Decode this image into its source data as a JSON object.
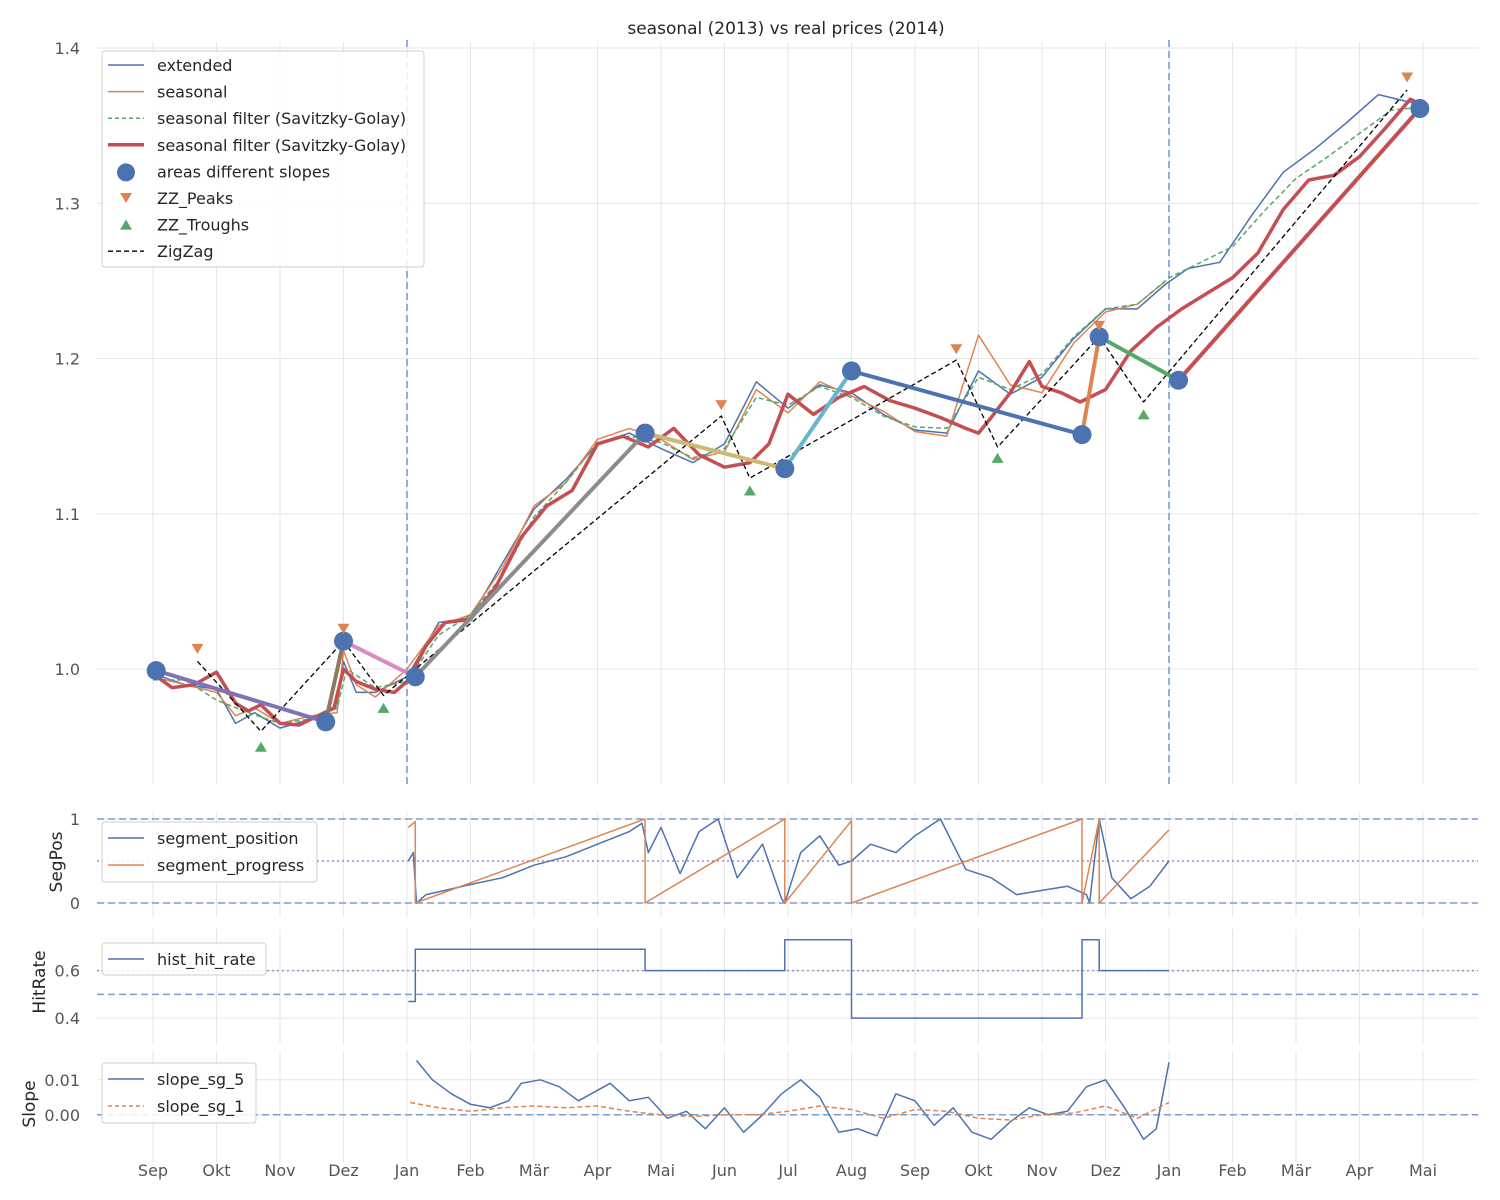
{
  "chart_data": [
    {
      "type": "line",
      "title": "seasonal (2013) vs real prices (2014)",
      "ylim": [
        0.935,
        1.4
      ],
      "yticks": [
        1.0,
        1.1,
        1.2,
        1.3,
        1.4
      ],
      "month_labels": [
        "Sep",
        "Okt",
        "Nov",
        "Dez",
        "Jan",
        "Feb",
        "Mär",
        "Apr",
        "Mai",
        "Jun",
        "Jul",
        "Aug",
        "Sep",
        "Okt",
        "Nov",
        "Dez",
        "Jan",
        "Feb",
        "Mär",
        "Apr",
        "Mai"
      ],
      "grid": true,
      "legend": "upper left",
      "vlines_month": [
        4,
        16
      ],
      "series": [
        {
          "name": "extended",
          "color": "#4c72b0",
          "x": [
            0,
            0.5,
            1,
            1.3,
            1.6,
            2,
            2.5,
            2.9,
            3,
            3.2,
            3.5,
            4,
            4.5,
            5,
            5.5,
            6,
            6.5,
            7,
            7.5,
            8,
            8.5,
            9,
            9.5,
            10,
            10.5,
            11,
            11.5,
            12,
            12.5,
            13,
            13.5,
            14,
            14.5,
            15,
            15.5,
            15.95,
            16.3,
            16.8,
            17.3,
            17.8,
            18.3,
            18.8,
            19.3,
            19.8,
            20.05
          ],
          "y": [
            0.997,
            0.99,
            0.987,
            0.965,
            0.972,
            0.962,
            0.968,
            0.975,
            1.005,
            0.985,
            0.985,
            0.995,
            1.03,
            1.033,
            1.068,
            1.103,
            1.122,
            1.145,
            1.152,
            1.142,
            1.133,
            1.145,
            1.185,
            1.168,
            1.183,
            1.178,
            1.164,
            1.154,
            1.152,
            1.192,
            1.177,
            1.188,
            1.213,
            1.232,
            1.232,
            1.248,
            1.258,
            1.262,
            1.292,
            1.32,
            1.335,
            1.352,
            1.37,
            1.365,
            1.362
          ]
        },
        {
          "name": "seasonal",
          "color": "#dd8452",
          "x": [
            0,
            0.5,
            1,
            1.3,
            1.6,
            2,
            2.5,
            2.9,
            3,
            3.2,
            3.5,
            4,
            4.5,
            5,
            5.5,
            6,
            6.5,
            7,
            7.5,
            8,
            8.5,
            9,
            9.5,
            10,
            10.5,
            11,
            11.5,
            12,
            12.5,
            13,
            13.5,
            14,
            14.5,
            15,
            15.5,
            15.95
          ],
          "y": [
            0.995,
            0.99,
            0.985,
            0.97,
            0.975,
            0.965,
            0.97,
            0.972,
            1.012,
            0.99,
            0.982,
            1.0,
            1.028,
            1.035,
            1.065,
            1.105,
            1.12,
            1.148,
            1.155,
            1.148,
            1.135,
            1.14,
            1.18,
            1.165,
            1.185,
            1.176,
            1.166,
            1.153,
            1.15,
            1.215,
            1.183,
            1.178,
            1.21,
            1.23,
            1.235,
            1.25
          ]
        },
        {
          "name": "seasonal filter (Savitzky-Golay)",
          "color": "#55a868",
          "dash": "5,3",
          "x": [
            0,
            0.5,
            1,
            1.5,
            2,
            2.5,
            2.9,
            3.05,
            3.5,
            4,
            4.5,
            5,
            5.5,
            6,
            6.5,
            7,
            7.5,
            8,
            8.5,
            9,
            9.5,
            10,
            10.5,
            11,
            11.5,
            12,
            12.5,
            13,
            13.5,
            14,
            14.5,
            15,
            15.5,
            16,
            16.5,
            17,
            17.5,
            18,
            18.5,
            19,
            19.5,
            20
          ],
          "y": [
            0.993,
            0.993,
            0.98,
            0.972,
            0.965,
            0.968,
            0.975,
            1.0,
            0.988,
            0.992,
            1.022,
            1.035,
            1.06,
            1.098,
            1.12,
            1.146,
            1.15,
            1.146,
            1.136,
            1.142,
            1.175,
            1.17,
            1.182,
            1.175,
            1.163,
            1.156,
            1.155,
            1.188,
            1.18,
            1.19,
            1.214,
            1.232,
            1.235,
            1.252,
            1.262,
            1.272,
            1.295,
            1.316,
            1.33,
            1.345,
            1.36,
            1.362
          ]
        },
        {
          "name": "seasonal filter (Savitzky-Golay)",
          "color": "#c44e52",
          "width": 3.5,
          "x": [
            0,
            0.3,
            0.65,
            1,
            1.3,
            1.5,
            1.7,
            2,
            2.3,
            2.6,
            2.85,
            3,
            3.2,
            3.5,
            3.8,
            4,
            4.3,
            4.6,
            5,
            5.4,
            5.8,
            6.2,
            6.6,
            7,
            7.4,
            7.8,
            8.2,
            8.6,
            9,
            9.4,
            9.7,
            10,
            10.4,
            10.8,
            11.2,
            11.6,
            12,
            12.4,
            12.8,
            13,
            13.2,
            13.5,
            13.8,
            14,
            14.3,
            14.6,
            15,
            15.4,
            15.8,
            16.2,
            16.6,
            17,
            17.4,
            17.8,
            18.2,
            18.6,
            19,
            19.4,
            19.8,
            20
          ],
          "y": [
            0.997,
            0.988,
            0.99,
            0.998,
            0.978,
            0.973,
            0.977,
            0.965,
            0.964,
            0.97,
            0.975,
            1.0,
            0.992,
            0.987,
            0.985,
            0.992,
            1.015,
            1.03,
            1.032,
            1.053,
            1.085,
            1.105,
            1.115,
            1.145,
            1.15,
            1.143,
            1.155,
            1.138,
            1.13,
            1.133,
            1.145,
            1.177,
            1.164,
            1.175,
            1.182,
            1.173,
            1.168,
            1.162,
            1.155,
            1.152,
            1.162,
            1.178,
            1.198,
            1.182,
            1.178,
            1.172,
            1.18,
            1.205,
            1.22,
            1.232,
            1.242,
            1.252,
            1.268,
            1.296,
            1.315,
            1.318,
            1.33,
            1.348,
            1.367,
            1.363
          ]
        }
      ],
      "area_points": {
        "name": "areas different slopes",
        "color": "#4c72b0",
        "x": [
          0.05,
          2.72,
          3.0,
          4.13,
          7.75,
          9.95,
          11.0,
          14.63,
          14.9,
          16.15,
          19.95
        ],
        "y": [
          0.999,
          0.966,
          1.018,
          0.995,
          1.152,
          1.129,
          1.192,
          1.151,
          1.214,
          1.186,
          1.361
        ]
      },
      "area_lines": [
        {
          "color": "#8172b3",
          "x": [
            0.05,
            2.72
          ],
          "y": [
            0.999,
            0.966
          ]
        },
        {
          "color": "#937860",
          "x": [
            2.72,
            3.0
          ],
          "y": [
            0.966,
            1.018
          ]
        },
        {
          "color": "#da8bc3",
          "x": [
            3.0,
            4.13
          ],
          "y": [
            1.018,
            0.995
          ]
        },
        {
          "color": "#8c8c8c",
          "x": [
            4.13,
            7.75
          ],
          "y": [
            0.995,
            1.152
          ]
        },
        {
          "color": "#ccb974",
          "x": [
            7.75,
            9.95
          ],
          "y": [
            1.152,
            1.129
          ]
        },
        {
          "color": "#64b5cd",
          "x": [
            9.95,
            11.0
          ],
          "y": [
            1.129,
            1.192
          ]
        },
        {
          "color": "#4c72b0",
          "x": [
            11.0,
            14.63
          ],
          "y": [
            1.192,
            1.151
          ]
        },
        {
          "color": "#dd8452",
          "x": [
            14.63,
            14.9
          ],
          "y": [
            1.151,
            1.214
          ]
        },
        {
          "color": "#55a868",
          "x": [
            14.9,
            16.15
          ],
          "y": [
            1.214,
            1.186
          ]
        },
        {
          "color": "#c44e52",
          "x": [
            16.15,
            19.95
          ],
          "y": [
            1.186,
            1.361
          ]
        }
      ],
      "peaks": {
        "name": "ZZ_Peaks",
        "color": "#dd8452",
        "x": [
          0.7,
          3.0,
          8.95,
          12.65,
          14.9,
          19.75
        ],
        "y": [
          1.013,
          1.026,
          1.17,
          1.206,
          1.221,
          1.381
        ]
      },
      "troughs": {
        "name": "ZZ_Troughs",
        "color": "#55a868",
        "x": [
          1.7,
          3.63,
          9.4,
          13.3,
          15.6
        ],
        "y": [
          0.95,
          0.975,
          1.115,
          1.136,
          1.164
        ]
      },
      "zigzag": {
        "name": "ZigZag",
        "color": "#000000",
        "x": [
          0.7,
          1.7,
          3.0,
          3.63,
          8.95,
          9.4,
          12.65,
          13.3,
          14.9,
          15.6,
          19.75
        ],
        "y": [
          1.005,
          0.96,
          1.018,
          0.983,
          1.163,
          1.123,
          1.199,
          1.143,
          1.214,
          1.172,
          1.373
        ]
      }
    },
    {
      "type": "line",
      "ylabel": "SegPos",
      "ylim": [
        0,
        1
      ],
      "yticks": [
        0,
        1
      ],
      "hlines": [
        0,
        1
      ],
      "hline_dotted": [
        0.5
      ],
      "legend": "upper left",
      "series": [
        {
          "name": "segment_position",
          "color": "#4c72b0",
          "x": [
            4.02,
            4.1,
            4.15,
            4.3,
            4.6,
            5,
            5.5,
            6,
            6.5,
            7,
            7.5,
            7.7,
            7.8,
            8,
            8.3,
            8.6,
            8.9,
            9.2,
            9.6,
            9.9,
            9.95,
            10.2,
            10.5,
            10.8,
            11,
            11.3,
            11.7,
            12,
            12.4,
            12.8,
            13.2,
            13.6,
            14,
            14.4,
            14.7,
            14.75,
            14.9,
            15.1,
            15.4,
            15.7,
            16
          ],
          "y": [
            0.5,
            0.6,
            0.0,
            0.1,
            0.15,
            0.22,
            0.3,
            0.45,
            0.55,
            0.7,
            0.85,
            0.95,
            0.6,
            0.9,
            0.35,
            0.85,
            1.0,
            0.3,
            0.7,
            0.05,
            0.0,
            0.6,
            0.8,
            0.45,
            0.5,
            0.7,
            0.6,
            0.8,
            1.0,
            0.4,
            0.3,
            0.1,
            0.15,
            0.2,
            0.1,
            0.0,
            1.0,
            0.3,
            0.05,
            0.2,
            0.5
          ]
        },
        {
          "name": "segment_progress",
          "color": "#dd8452",
          "x": [
            4.02,
            4.13,
            4.13,
            7.75,
            7.75,
            9.95,
            9.95,
            11.0,
            11.0,
            14.63,
            14.63,
            14.9,
            14.9,
            16.0
          ],
          "y": [
            0.9,
            0.97,
            0.0,
            1.0,
            0.0,
            1.0,
            0.0,
            0.98,
            0.0,
            1.0,
            0.0,
            1.0,
            0.0,
            0.87
          ]
        }
      ]
    },
    {
      "type": "line",
      "ylabel": "HitRate",
      "ylim": [
        0.35,
        0.75
      ],
      "yticks": [
        0.4,
        0.6
      ],
      "hlines": [
        0.5
      ],
      "hline_dotted": [
        0.6
      ],
      "legend": "upper left",
      "series": [
        {
          "name": "hist_hit_rate",
          "color": "#4c72b0",
          "x": [
            4.02,
            4.13,
            4.13,
            7.75,
            7.75,
            9.95,
            9.95,
            11.0,
            11.0,
            14.63,
            14.63,
            14.9,
            14.9,
            16.0
          ],
          "y": [
            0.47,
            0.47,
            0.69,
            0.69,
            0.6,
            0.6,
            0.73,
            0.73,
            0.4,
            0.4,
            0.73,
            0.73,
            0.6,
            0.6
          ]
        }
      ]
    },
    {
      "type": "line",
      "ylabel": "Slope",
      "ylim": [
        -0.0095,
        0.0165
      ],
      "yticks": [
        0.0,
        0.01
      ],
      "hlines": [
        0
      ],
      "legend": "upper left",
      "series": [
        {
          "name": "slope_sg_5",
          "color": "#4c72b0",
          "x": [
            4.15,
            4.4,
            4.7,
            5,
            5.3,
            5.6,
            5.8,
            6.1,
            6.4,
            6.7,
            6.9,
            7.2,
            7.5,
            7.8,
            8.1,
            8.4,
            8.7,
            9,
            9.3,
            9.6,
            9.9,
            10.2,
            10.5,
            10.8,
            11.1,
            11.4,
            11.7,
            12,
            12.3,
            12.6,
            12.9,
            13.2,
            13.5,
            13.8,
            14.1,
            14.4,
            14.7,
            15,
            15.3,
            15.6,
            15.8,
            16
          ],
          "y": [
            0.0155,
            0.01,
            0.006,
            0.003,
            0.002,
            0.004,
            0.009,
            0.01,
            0.008,
            0.004,
            0.006,
            0.009,
            0.004,
            0.005,
            -0.001,
            0.001,
            -0.004,
            0.002,
            -0.005,
            0.0,
            0.006,
            0.01,
            0.005,
            -0.005,
            -0.004,
            -0.006,
            0.006,
            0.004,
            -0.003,
            0.002,
            -0.005,
            -0.007,
            -0.002,
            0.002,
            0.0,
            0.001,
            0.008,
            0.01,
            0.002,
            -0.007,
            -0.004,
            0.015
          ]
        },
        {
          "name": "slope_sg_1",
          "color": "#dd8452",
          "dash": "5,3",
          "x": [
            4.05,
            4.5,
            5,
            5.5,
            6,
            6.5,
            7,
            7.5,
            8,
            8.5,
            9,
            9.5,
            10,
            10.5,
            11,
            11.5,
            12,
            12.5,
            13,
            13.5,
            14,
            14.5,
            15,
            15.5,
            16
          ],
          "y": [
            0.0035,
            0.002,
            0.001,
            0.002,
            0.0025,
            0.002,
            0.0025,
            0.001,
            0.0,
            -0.0005,
            0.0,
            0.0,
            0.001,
            0.0025,
            0.0015,
            -0.001,
            0.0015,
            0.001,
            -0.001,
            -0.0015,
            0.0,
            0.0005,
            0.0025,
            -0.001,
            0.0035
          ]
        }
      ]
    }
  ]
}
